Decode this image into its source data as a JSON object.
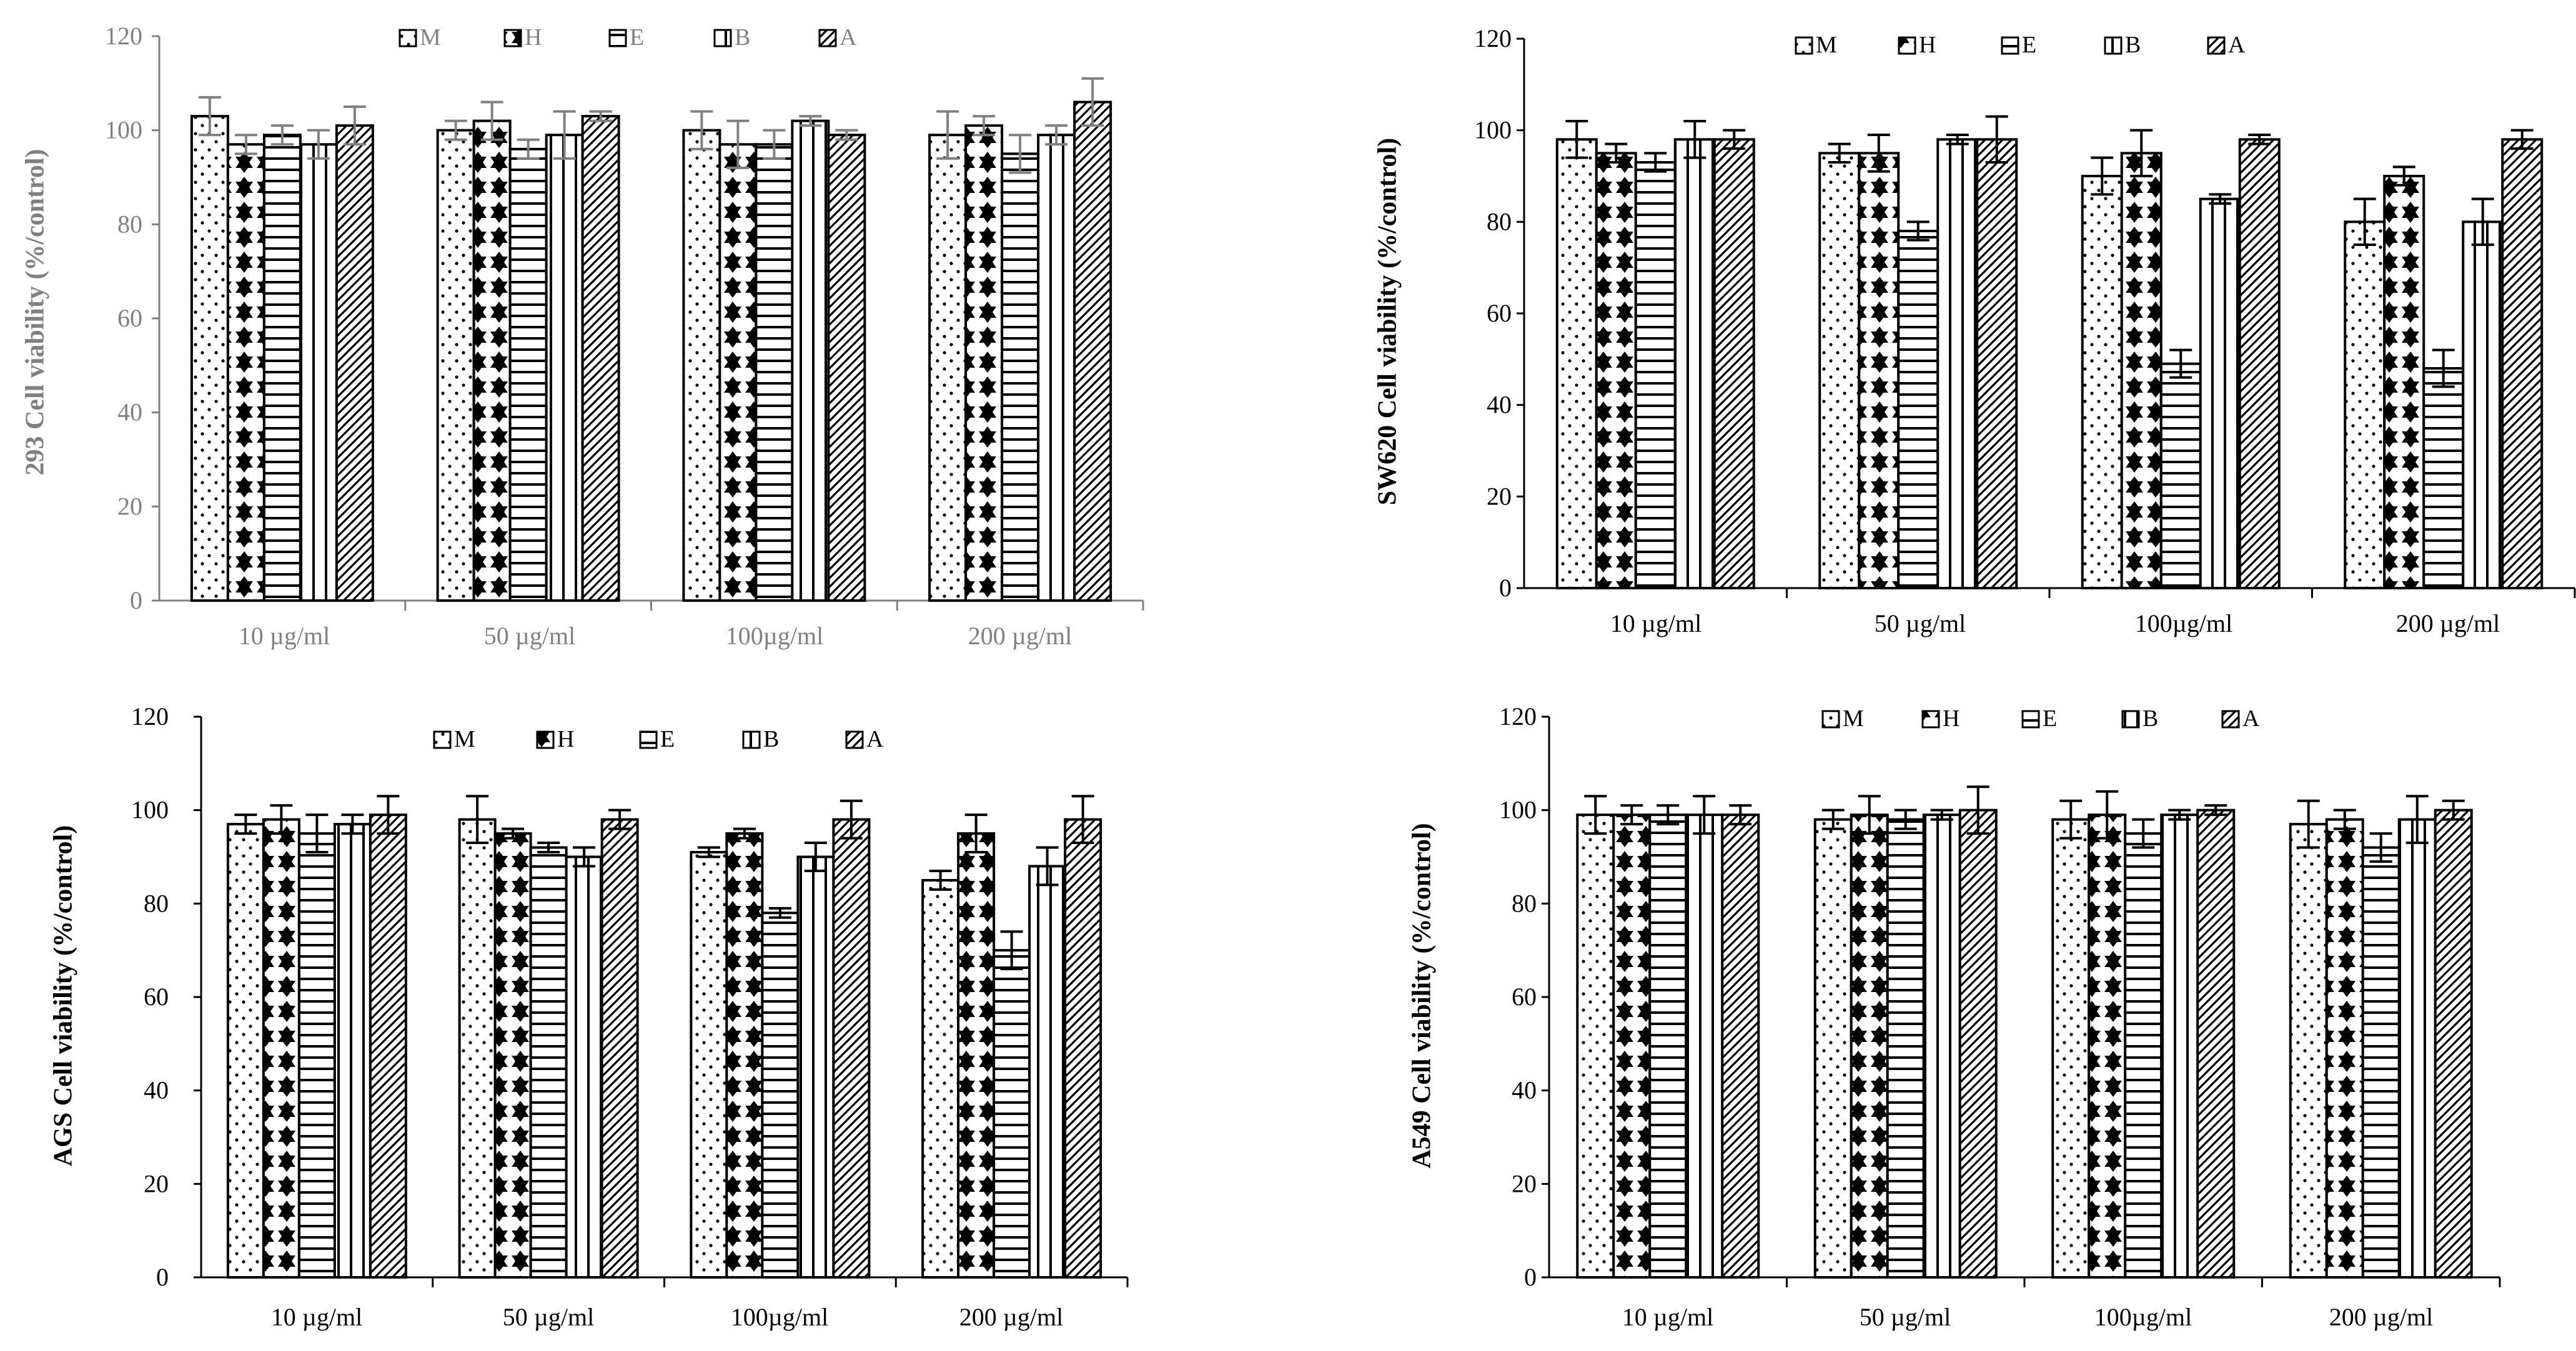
{
  "legend_labels": [
    "M",
    "H",
    "E",
    "B",
    "A"
  ],
  "colors": {
    "axis": "#000000",
    "error_bar": "#000000",
    "axis_light": "#808080"
  },
  "chart_data": [
    {
      "type": "bar",
      "ylabel": "293 Cell viability (%/control)",
      "categories": [
        "10 µg/ml",
        "50 µg/ml",
        "100µg/ml",
        "200 µg/ml"
      ],
      "ylim": [
        0,
        120
      ],
      "yticks": [
        0,
        20,
        40,
        60,
        80,
        100,
        120
      ],
      "legend_position": "top",
      "series": [
        {
          "name": "M",
          "values": [
            103,
            100,
            100,
            99
          ],
          "errors": [
            4,
            2,
            4,
            5
          ]
        },
        {
          "name": "H",
          "values": [
            97,
            102,
            97,
            101
          ],
          "errors": [
            2,
            4,
            5,
            2
          ]
        },
        {
          "name": "E",
          "values": [
            99,
            96,
            97,
            95
          ],
          "errors": [
            2,
            2,
            3,
            4
          ]
        },
        {
          "name": "B",
          "values": [
            97,
            99,
            102,
            99
          ],
          "errors": [
            3,
            5,
            1,
            2
          ]
        },
        {
          "name": "A",
          "values": [
            101,
            103,
            99,
            106
          ],
          "errors": [
            4,
            1,
            1,
            5
          ]
        }
      ]
    },
    {
      "type": "bar",
      "ylabel": "SW620 Cell viability (%/control)",
      "categories": [
        "10 µg/ml",
        "50 µg/ml",
        "100µg/ml",
        "200 µg/ml"
      ],
      "ylim": [
        0,
        120
      ],
      "yticks": [
        0,
        20,
        40,
        60,
        80,
        100,
        120
      ],
      "legend_position": "top",
      "series": [
        {
          "name": "M",
          "values": [
            98,
            95,
            90,
            80
          ],
          "errors": [
            4,
            2,
            4,
            5
          ]
        },
        {
          "name": "H",
          "values": [
            95,
            95,
            95,
            90
          ],
          "errors": [
            2,
            4,
            5,
            2
          ]
        },
        {
          "name": "E",
          "values": [
            93,
            78,
            49,
            48
          ],
          "errors": [
            2,
            2,
            3,
            4
          ]
        },
        {
          "name": "B",
          "values": [
            98,
            98,
            85,
            80
          ],
          "errors": [
            4,
            1,
            1,
            5
          ]
        },
        {
          "name": "A",
          "values": [
            98,
            98,
            98,
            98
          ],
          "errors": [
            2,
            5,
            1,
            2
          ]
        }
      ]
    },
    {
      "type": "bar",
      "ylabel": "AGS Cell viability (%/control)",
      "categories": [
        "10 µg/ml",
        "50 µg/ml",
        "100µg/ml",
        "200 µg/ml"
      ],
      "ylim": [
        0,
        120
      ],
      "yticks": [
        0,
        20,
        40,
        60,
        80,
        100,
        120
      ],
      "legend_position": "top",
      "series": [
        {
          "name": "M",
          "values": [
            97,
            98,
            91,
            85
          ],
          "errors": [
            2,
            5,
            1,
            2
          ]
        },
        {
          "name": "H",
          "values": [
            98,
            95,
            95,
            95
          ],
          "errors": [
            3,
            1,
            1,
            4
          ]
        },
        {
          "name": "E",
          "values": [
            95,
            92,
            78,
            70
          ],
          "errors": [
            4,
            1,
            1,
            4
          ]
        },
        {
          "name": "B",
          "values": [
            97,
            90,
            90,
            88
          ],
          "errors": [
            2,
            2,
            3,
            4
          ]
        },
        {
          "name": "A",
          "values": [
            99,
            98,
            98,
            98
          ],
          "errors": [
            4,
            2,
            4,
            5
          ]
        }
      ]
    },
    {
      "type": "bar",
      "ylabel": "A549 Cell viability (%/control)",
      "categories": [
        "10 µg/ml",
        "50 µg/ml",
        "100µg/ml",
        "200 µg/ml"
      ],
      "ylim": [
        0,
        120
      ],
      "yticks": [
        0,
        20,
        40,
        60,
        80,
        100,
        120
      ],
      "legend_position": "top",
      "series": [
        {
          "name": "M",
          "values": [
            99,
            98,
            98,
            97
          ],
          "errors": [
            4,
            2,
            4,
            5
          ]
        },
        {
          "name": "H",
          "values": [
            99,
            99,
            99,
            98
          ],
          "errors": [
            2,
            4,
            5,
            2
          ]
        },
        {
          "name": "E",
          "values": [
            99,
            98,
            95,
            92
          ],
          "errors": [
            2,
            2,
            3,
            3
          ]
        },
        {
          "name": "B",
          "values": [
            99,
            99,
            99,
            98
          ],
          "errors": [
            4,
            1,
            1,
            5
          ]
        },
        {
          "name": "A",
          "values": [
            99,
            100,
            100,
            100
          ],
          "errors": [
            2,
            5,
            1,
            2
          ]
        }
      ]
    }
  ]
}
